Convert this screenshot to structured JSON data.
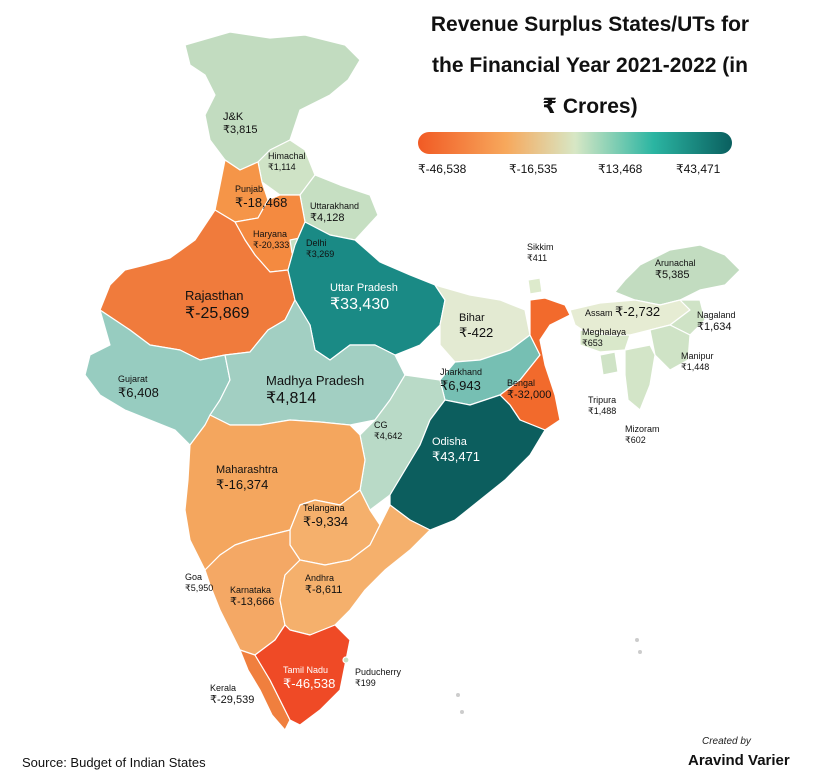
{
  "title": {
    "line1": "Revenue Surplus States/UTs for",
    "line2": "the Financial Year 2021-2022 (in",
    "line3": "₹ Crores)"
  },
  "legend": {
    "ticks": [
      "₹-46,538",
      "₹-16,535",
      "₹13,468",
      "₹43,471"
    ],
    "min": -46538,
    "max": 43471,
    "colors": [
      "#f15a24",
      "#f7a85c",
      "#d7e7c5",
      "#2bb5a2",
      "#0a5f5f"
    ]
  },
  "regions": [
    {
      "name": "J&K",
      "value_label": "₹3,815",
      "value": 3815
    },
    {
      "name": "Himachal",
      "value_label": "₹1,114",
      "value": 1114
    },
    {
      "name": "Punjab",
      "value_label": "₹-18,468",
      "value": -18468
    },
    {
      "name": "Uttarakhand",
      "value_label": "₹4,128",
      "value": 4128
    },
    {
      "name": "Haryana",
      "value_label": "₹-20,333",
      "value": -20333
    },
    {
      "name": "Delhi",
      "value_label": "₹3,269",
      "value": 3269
    },
    {
      "name": "Rajasthan",
      "value_label": "₹-25,869",
      "value": -25869
    },
    {
      "name": "Uttar Pradesh",
      "value_label": "₹33,430",
      "value": 33430
    },
    {
      "name": "Sikkim",
      "value_label": "₹411",
      "value": 411
    },
    {
      "name": "Arunachal",
      "value_label": "₹5,385",
      "value": 5385
    },
    {
      "name": "Assam",
      "value_label": "₹-2,732",
      "value": -2732
    },
    {
      "name": "Nagaland",
      "value_label": "₹1,634",
      "value": 1634
    },
    {
      "name": "Meghalaya",
      "value_label": "₹653",
      "value": 653
    },
    {
      "name": "Manipur",
      "value_label": "₹1,448",
      "value": 1448
    },
    {
      "name": "Bihar",
      "value_label": "₹-422",
      "value": -422
    },
    {
      "name": "Gujarat",
      "value_label": "₹6,408",
      "value": 6408
    },
    {
      "name": "Madhya Pradesh",
      "value_label": "₹4,814",
      "value": 4814
    },
    {
      "name": "Jharkhand",
      "value_label": "₹6,943",
      "value": 6943
    },
    {
      "name": "Bengal",
      "value_label": "₹-32,000",
      "value": -32000
    },
    {
      "name": "Tripura",
      "value_label": "₹1,488",
      "value": 1488
    },
    {
      "name": "Mizoram",
      "value_label": "₹602",
      "value": 602
    },
    {
      "name": "CG",
      "value_label": "₹4,642",
      "value": 4642
    },
    {
      "name": "Odisha",
      "value_label": "₹43,471",
      "value": 43471
    },
    {
      "name": "Maharashtra",
      "value_label": "₹-16,374",
      "value": -16374
    },
    {
      "name": "Telangana",
      "value_label": "₹-9,334",
      "value": -9334
    },
    {
      "name": "Goa",
      "value_label": "₹5,950",
      "value": 5950
    },
    {
      "name": "Karnataka",
      "value_label": "₹-13,666",
      "value": -13666
    },
    {
      "name": "Andhra",
      "value_label": "₹-8,611",
      "value": -8611
    },
    {
      "name": "Puducherry",
      "value_label": "₹199",
      "value": 199
    },
    {
      "name": "Tamil Nadu",
      "value_label": "₹-46,538",
      "value": -46538
    },
    {
      "name": "Kerala",
      "value_label": "₹-29,539",
      "value": -29539
    }
  ],
  "source": "Source: Budget of Indian States",
  "credit": {
    "line1": "Created by",
    "line2": "Aravind Varier"
  }
}
